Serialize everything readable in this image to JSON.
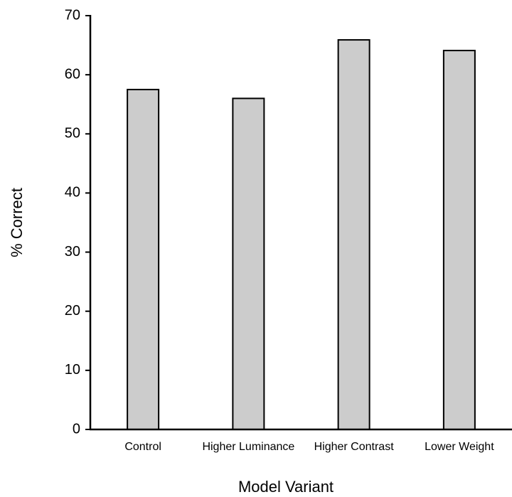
{
  "chart_data": {
    "type": "bar",
    "x_label": "Model Variant",
    "y_label": "% Correct",
    "categories": [
      "Control",
      "Higher Luminance",
      "Higher Contrast",
      "Lower Weight"
    ],
    "values": [
      57.5,
      56,
      65.9,
      64.1
    ],
    "color": "#cccccc",
    "ylim": [
      0,
      70
    ],
    "yticks": [
      0,
      10,
      20,
      30,
      40,
      50,
      60,
      70
    ],
    "grid": false
  }
}
